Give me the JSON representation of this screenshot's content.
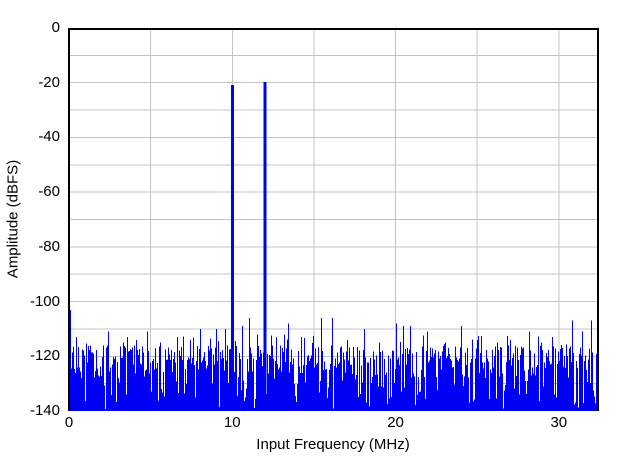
{
  "figure": {
    "background": "#ffffff"
  },
  "chart_data": {
    "type": "line",
    "subtype": "fft-spectrum",
    "title": "",
    "xlabel": "Input Frequency (MHz)",
    "ylabel": "Amplitude (dBFS)",
    "xlim": [
      0,
      32.4
    ],
    "ylim": [
      -140,
      0
    ],
    "xticks": [
      "0",
      "10",
      "20",
      "30"
    ],
    "xtick_values": [
      0,
      10,
      20,
      30
    ],
    "yticks": [
      "0",
      "-20",
      "-40",
      "-60",
      "-80",
      "-100",
      "-120",
      "-140"
    ],
    "ytick_values": [
      0,
      -20,
      -40,
      -60,
      -80,
      -100,
      -120,
      -140
    ],
    "x_gridlines_mhz": [
      5,
      10,
      15,
      20,
      25,
      30
    ],
    "y_gridline_step_db": 10,
    "grid": "on",
    "legend": "none",
    "colors": {
      "series": "#0000f2",
      "gridline": "#c4c4c4",
      "axis_frame": "#000000",
      "background": "#ffffff",
      "text": "#000000"
    },
    "tones": [
      {
        "freq_mhz": 10.0,
        "amp_dbfs": -20.8
      },
      {
        "freq_mhz": 12.0,
        "amp_dbfs": -19.8
      }
    ],
    "spurs": [
      [
        0.06,
        -103
      ],
      [
        0.4,
        -113
      ],
      [
        1.3,
        -116
      ],
      [
        2.4,
        -111
      ],
      [
        3.3,
        -115
      ],
      [
        4.1,
        -114
      ],
      [
        4.75,
        -111
      ],
      [
        5.6,
        -115
      ],
      [
        6.6,
        -113
      ],
      [
        7.4,
        -114
      ],
      [
        8.05,
        -110
      ],
      [
        9.0,
        -110
      ],
      [
        9.55,
        -110
      ],
      [
        10.6,
        -109
      ],
      [
        11.0,
        -106
      ],
      [
        11.5,
        -112
      ],
      [
        12.65,
        -113
      ],
      [
        13.4,
        -108
      ],
      [
        14.2,
        -113
      ],
      [
        15.45,
        -106
      ],
      [
        16.1,
        -106
      ],
      [
        17.0,
        -114
      ],
      [
        18.05,
        -110
      ],
      [
        19.0,
        -115
      ],
      [
        20.05,
        -108
      ],
      [
        20.45,
        -109
      ],
      [
        20.9,
        -109
      ],
      [
        21.9,
        -111
      ],
      [
        23.0,
        -115
      ],
      [
        24.0,
        -109
      ],
      [
        25.0,
        -114
      ],
      [
        26.2,
        -115
      ],
      [
        27.0,
        -114
      ],
      [
        28.2,
        -111
      ],
      [
        28.9,
        -115
      ],
      [
        29.6,
        -113
      ],
      [
        30.8,
        -107
      ],
      [
        31.4,
        -111
      ],
      [
        32.0,
        -107
      ]
    ],
    "noise_floor": {
      "typical_top_dbfs": -121,
      "peak_dbfs": -112,
      "min_dbfs": -140
    }
  }
}
